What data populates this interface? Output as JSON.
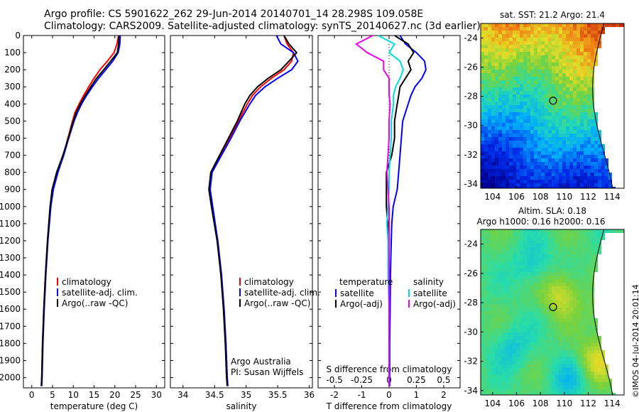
{
  "header": {
    "line1": "Argo profile: CS 5901622_262 29-Jun-2014 20140701_14 28.298S 109.058E",
    "line2": "Climatology: CARS2009. Satellite-adjusted climatology: synTS_20140627.nc (3d earlier)"
  },
  "colors": {
    "climatology": "#ff0000",
    "satellite": "#0000ff",
    "argo": "#000000",
    "satellite_s": "#00dddd",
    "argo_s": "#ee00ee"
  },
  "chart_data": [
    {
      "type": "line",
      "panel": "temperature",
      "xlabel": "temperature (deg C)",
      "ylabel": "",
      "xlim": [
        -2,
        32
      ],
      "ylim": [
        2060,
        0
      ],
      "xticks": [
        0,
        5,
        10,
        15,
        20,
        25,
        30
      ],
      "yticks": [
        0,
        100,
        200,
        300,
        400,
        500,
        600,
        700,
        800,
        900,
        1000,
        1100,
        1200,
        1300,
        1400,
        1500,
        1600,
        1700,
        1800,
        1900,
        2000
      ],
      "legend": [
        "climatology",
        "satellite-adj. clim.",
        "Argo(..raw -QC)"
      ],
      "depth": [
        0,
        50,
        100,
        150,
        200,
        250,
        300,
        350,
        400,
        450,
        500,
        600,
        700,
        800,
        900,
        1000,
        1200,
        1400,
        1600,
        1800,
        2000,
        2050
      ],
      "series": [
        {
          "name": "climatology",
          "values": [
            20.9,
            20.5,
            19.8,
            18.2,
            16.4,
            15.0,
            13.7,
            12.5,
            11.4,
            10.4,
            9.8,
            8.7,
            7.6,
            6.2,
            5.1,
            4.5,
            3.8,
            3.3,
            2.9,
            2.6,
            2.4,
            2.3
          ]
        },
        {
          "name": "satellite-adj. clim.",
          "values": [
            21.3,
            21.2,
            20.8,
            19.5,
            17.8,
            16.1,
            14.6,
            13.2,
            12.0,
            11.0,
            10.2,
            8.9,
            7.7,
            6.3,
            5.2,
            4.6,
            3.9,
            3.4,
            3.0,
            2.7,
            2.5,
            2.4
          ]
        },
        {
          "name": "Argo(..raw -QC)",
          "values": [
            21.0,
            20.9,
            20.6,
            19.0,
            17.3,
            15.6,
            14.2,
            12.9,
            11.7,
            10.7,
            10.0,
            8.8,
            7.5,
            6.0,
            4.9,
            4.4,
            3.8,
            3.3,
            2.9,
            2.6,
            2.4,
            2.3
          ]
        }
      ]
    },
    {
      "type": "line",
      "panel": "salinity",
      "xlabel": "salinity",
      "xlim": [
        33.8,
        36.05
      ],
      "ylim": [
        2060,
        0
      ],
      "xticks": [
        34,
        34.5,
        35,
        35.5,
        36
      ],
      "legend": [
        "climatology",
        "satellite-adj. clim.",
        "Argo(..raw -QC)"
      ],
      "annotation": [
        "Argo Australia",
        "PI: Susan Wijffels"
      ],
      "depth": [
        0,
        50,
        100,
        150,
        200,
        250,
        300,
        350,
        400,
        450,
        500,
        600,
        700,
        800,
        900,
        1000,
        1200,
        1400,
        1600,
        1800,
        2000,
        2050
      ],
      "series": [
        {
          "name": "climatology",
          "values": [
            35.6,
            35.65,
            35.75,
            35.72,
            35.6,
            35.4,
            35.23,
            35.1,
            35.02,
            34.95,
            34.88,
            34.74,
            34.6,
            34.46,
            34.42,
            34.46,
            34.55,
            34.61,
            34.65,
            34.68,
            34.7,
            34.71
          ]
        },
        {
          "name": "satellite-adj. clim.",
          "values": [
            35.48,
            35.55,
            35.75,
            35.82,
            35.72,
            35.5,
            35.3,
            35.15,
            35.06,
            34.98,
            34.9,
            34.76,
            34.61,
            34.46,
            34.43,
            34.47,
            34.55,
            34.61,
            34.65,
            34.68,
            34.7,
            34.71
          ]
        },
        {
          "name": "Argo(..raw -QC)",
          "values": [
            35.6,
            35.68,
            35.8,
            35.68,
            35.55,
            35.35,
            35.18,
            35.06,
            34.98,
            34.92,
            34.86,
            34.72,
            34.58,
            34.44,
            34.41,
            34.45,
            34.54,
            34.6,
            34.64,
            34.67,
            34.69,
            34.7
          ]
        }
      ]
    },
    {
      "type": "line",
      "panel": "differences",
      "xlabel": "T difference from climatology",
      "xlabel_top": "S difference from climatology",
      "xlim": [
        -2.6,
        2.6
      ],
      "ylim": [
        2060,
        0
      ],
      "xticks": [
        -2,
        -1,
        0,
        1,
        2
      ],
      "top_ticks": [
        "-0.5",
        "-0.25",
        "0",
        "0.25",
        "0.5"
      ],
      "legend_t_title": "temperature",
      "legend_s_title": "salinity",
      "legend_t": [
        "satellite",
        "Argo(-adj)"
      ],
      "legend_s": [
        "satellite",
        "Argo(-adj)"
      ],
      "depth": [
        0,
        50,
        100,
        150,
        200,
        250,
        300,
        350,
        400,
        500,
        600,
        700,
        800,
        900,
        1000,
        1100,
        1200,
        1400,
        1600,
        1800,
        2000,
        2050
      ],
      "series": [
        {
          "name": "T satellite",
          "values": [
            0.4,
            0.6,
            1.0,
            1.3,
            1.35,
            1.2,
            0.95,
            0.8,
            0.7,
            0.5,
            0.45,
            0.4,
            0.35,
            0.3,
            0.15,
            0.1,
            0.08,
            0.05,
            0.04,
            0.02,
            0.02,
            0.02
          ]
        },
        {
          "name": "T Argo(-adj)",
          "values": [
            0.2,
            0.7,
            0.9,
            0.7,
            0.8,
            0.6,
            0.4,
            0.35,
            0.3,
            0.2,
            0.2,
            0.1,
            -0.1,
            -0.1,
            -0.1,
            -0.05,
            0.0,
            0.0,
            0.0,
            0.0,
            0.0,
            0.0
          ]
        },
        {
          "name": "S satellite",
          "values": [
            -0.1,
            0.05,
            0.0,
            0.1,
            0.13,
            0.1,
            0.06,
            0.04,
            0.04,
            0.02,
            0.02,
            0.01,
            0.0,
            0.0,
            -0.01,
            -0.02,
            -0.01,
            -0.01,
            0.0,
            0.0,
            0.0,
            0.0
          ]
        },
        {
          "name": "S Argo(-adj)",
          "values": [
            -0.15,
            -0.3,
            -0.2,
            -0.05,
            -0.05,
            0.0,
            0.0,
            0.0,
            0.01,
            0.0,
            0.0,
            -0.01,
            -0.02,
            -0.01,
            0.0,
            0.0,
            0.0,
            0.0,
            0.0,
            0.0,
            0.0,
            0.0
          ]
        }
      ]
    },
    {
      "type": "heatmap",
      "panel": "sst_map",
      "title": "sat. SST: 21.2  Argo: 21.4",
      "xticks": [
        104,
        106,
        108,
        110,
        112,
        114
      ],
      "yticks": [
        -24,
        -26,
        -28,
        -30,
        -32,
        -34
      ],
      "xlim": [
        103,
        115
      ],
      "ylim": [
        -34.3,
        -23
      ],
      "argo_position": {
        "lon": 109.058,
        "lat": -28.298
      }
    },
    {
      "type": "heatmap",
      "panel": "sla_map",
      "title": "Altim. SLA: 0.18",
      "subtitle": "Argo h1000: 0.16  h2000: 0.16",
      "xticks": [
        104,
        106,
        108,
        110,
        112,
        114
      ],
      "yticks": [
        -24,
        -26,
        -28,
        -30,
        -32,
        -34
      ],
      "xlim": [
        103,
        115
      ],
      "ylim": [
        -34.3,
        -23
      ],
      "argo_position": {
        "lon": 109.058,
        "lat": -28.298
      }
    }
  ],
  "footer": {
    "stamp": "©IMOS 04-Jul-2014 20:01:14"
  }
}
